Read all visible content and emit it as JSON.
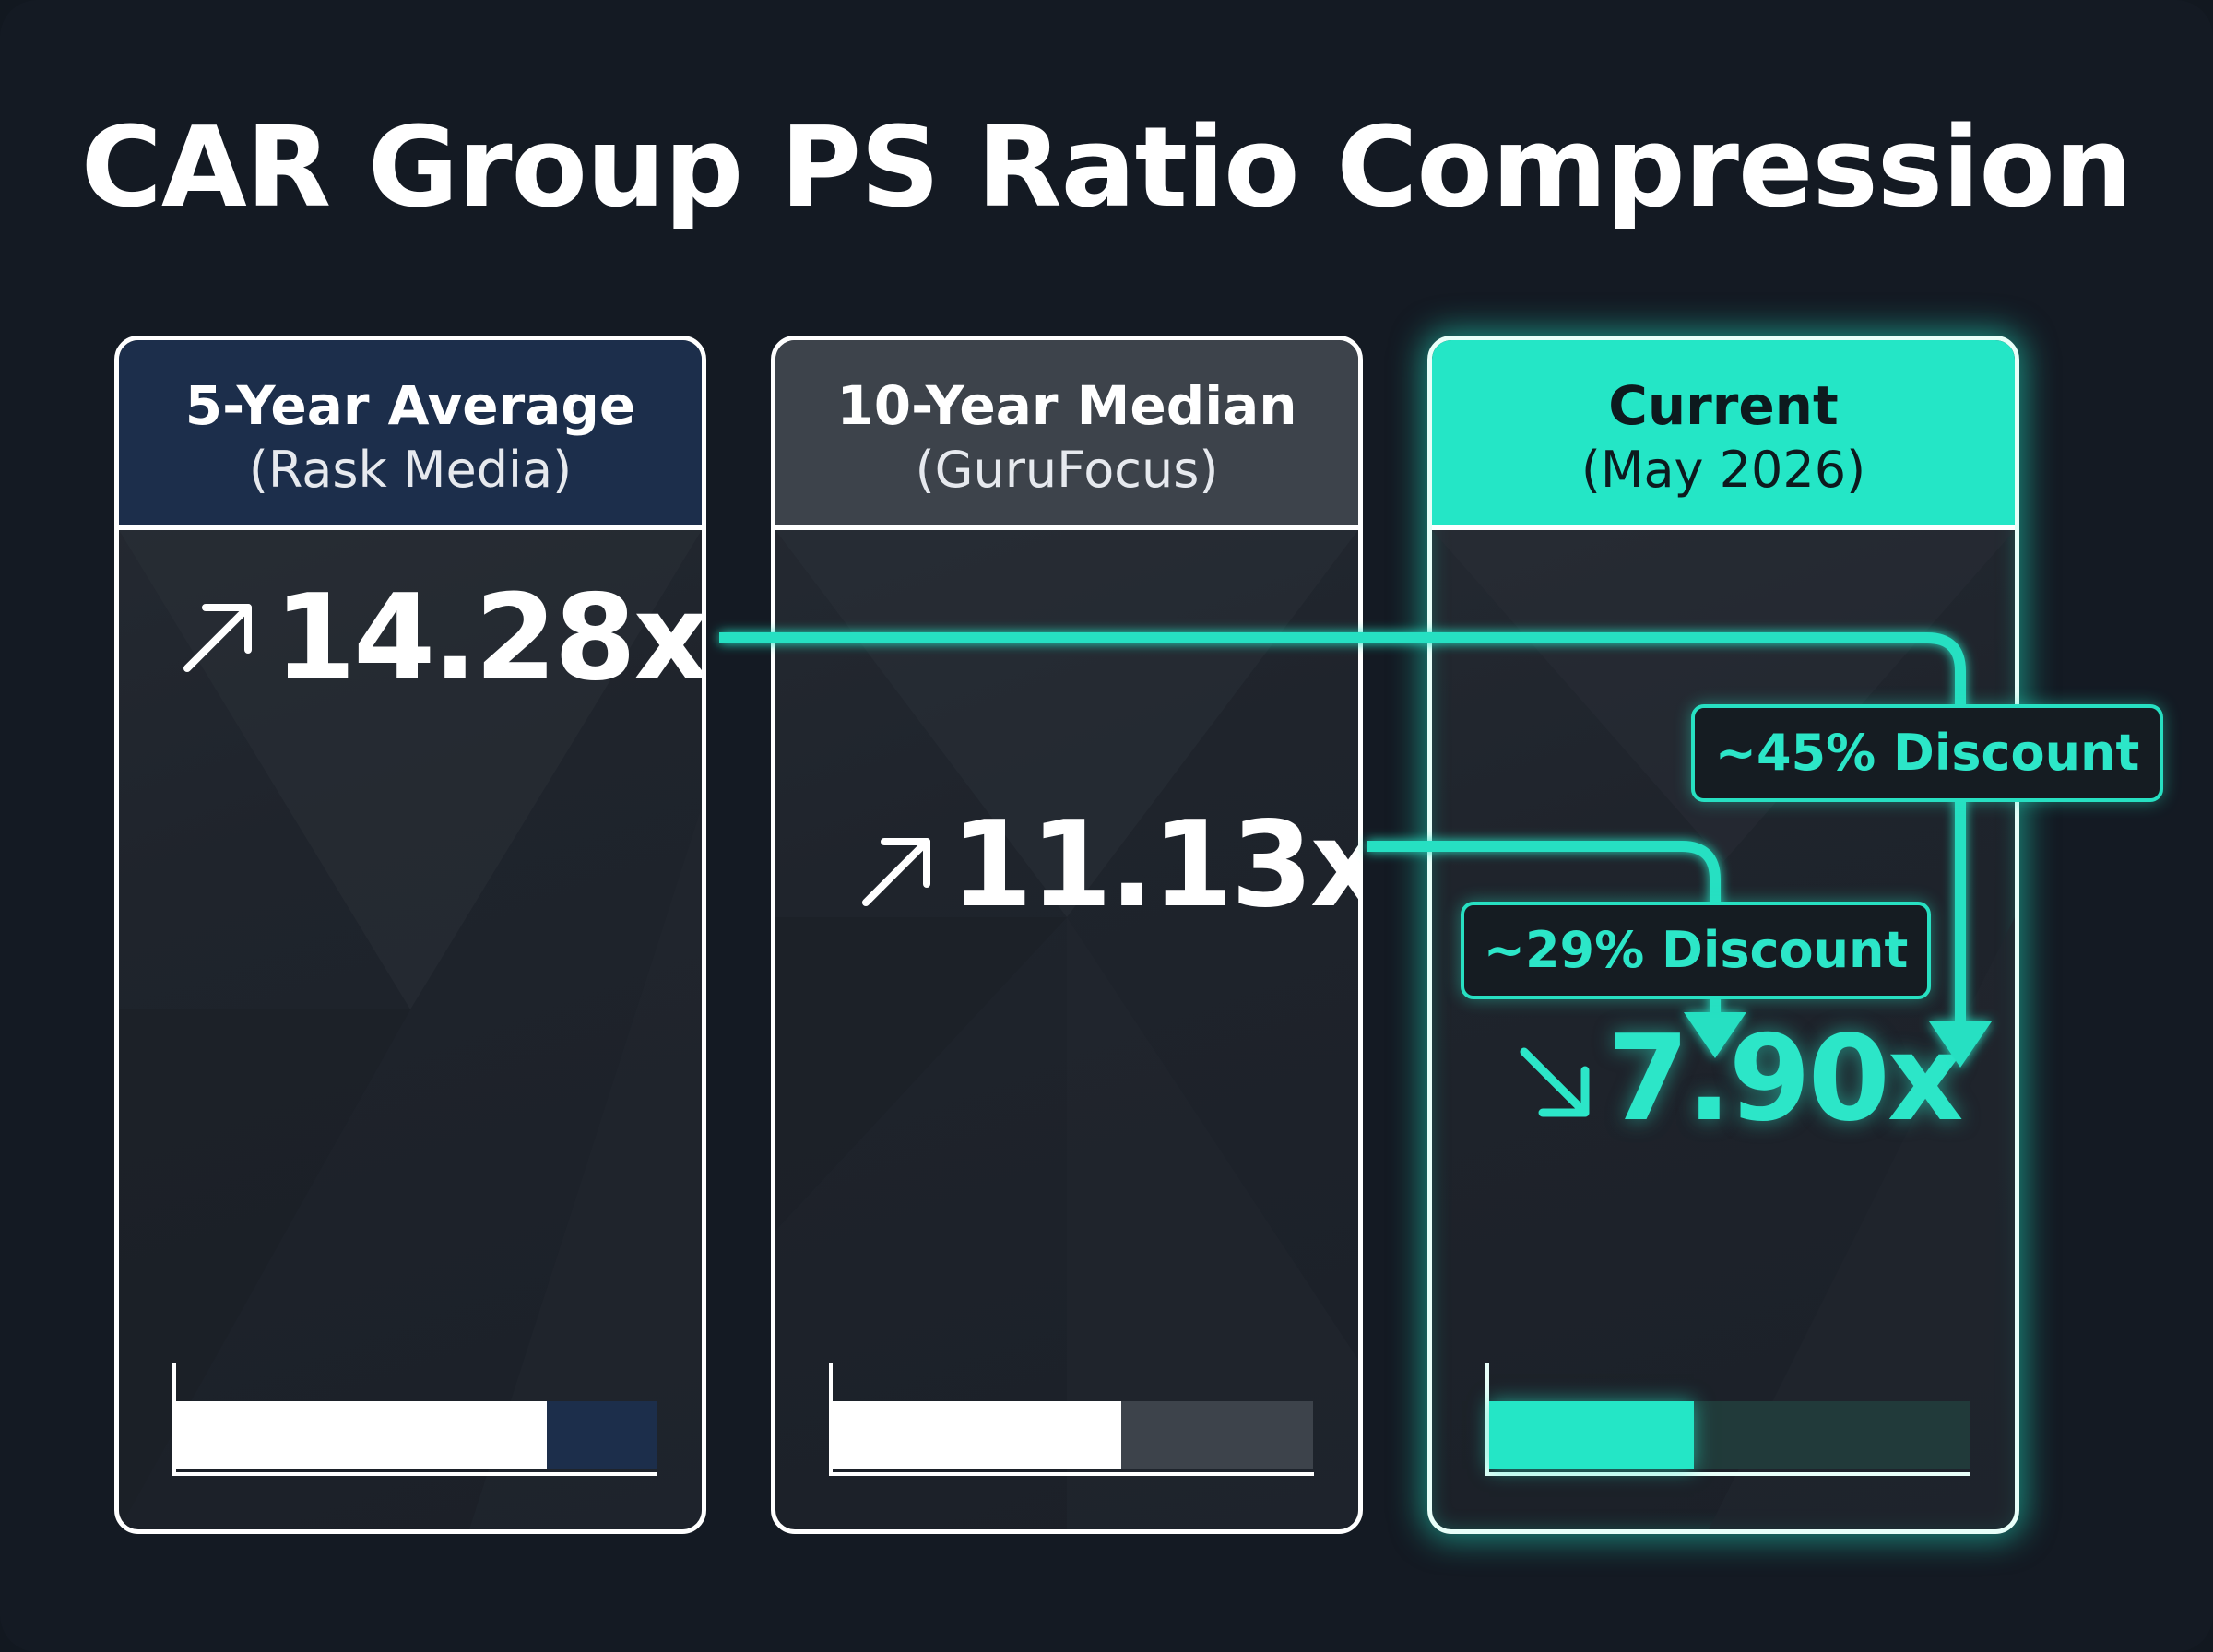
{
  "title": "CAR Group PS Ratio Compression",
  "colors": {
    "background": "#141a23",
    "accent": "#24e6c6",
    "card_border": "#ffffff",
    "avg_header": "#1c2e4b",
    "median_header": "#3d434b"
  },
  "chart_data": {
    "type": "bar",
    "title": "CAR Group PS Ratio Compression",
    "categories": [
      "5-Year Average",
      "10-Year Median",
      "Current"
    ],
    "category_sources": [
      "(Rask Media)",
      "(GuruFocus)",
      "(May 2026)"
    ],
    "values": [
      14.28,
      11.13,
      7.9
    ],
    "value_labels": [
      "14.28x",
      "11.13x",
      "7.90x"
    ],
    "value_icons": [
      "arrow-up-right-icon",
      "arrow-up-right-icon",
      "arrow-down-right-icon"
    ],
    "ylim": [
      0,
      18.5
    ],
    "annotations": [
      {
        "label": "~45% Discount",
        "from": "5-Year Average",
        "to": "Current"
      },
      {
        "label": "~29% Discount",
        "from": "10-Year Median",
        "to": "Current"
      }
    ],
    "grid": false,
    "legend": "none"
  }
}
